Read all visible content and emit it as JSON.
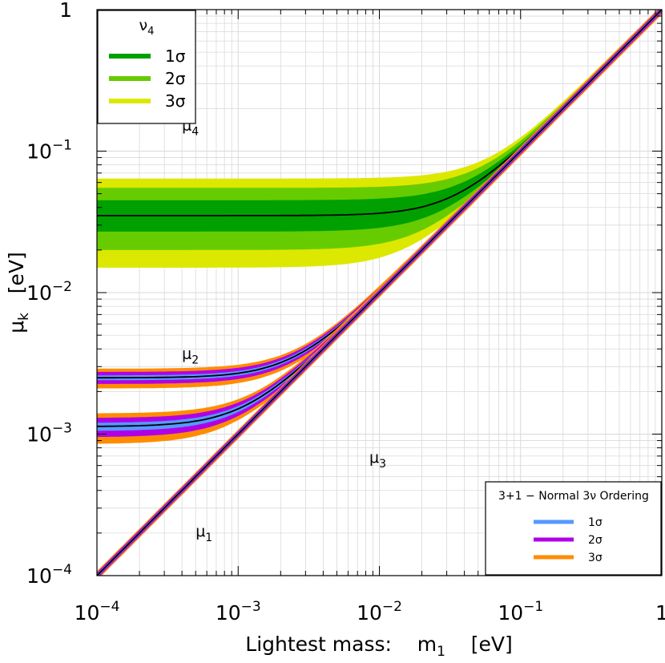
{
  "chart_data": {
    "type": "line",
    "xlabel": {
      "main": "Lightest mass:",
      "var": "m",
      "sub": "1",
      "unit": "[eV]"
    },
    "ylabel": {
      "var": "μ",
      "sub": "k",
      "unit": "[eV]"
    },
    "x_scale": "log",
    "y_scale": "log",
    "xlim": [
      0.0001,
      1
    ],
    "ylim": [
      0.0001,
      1
    ],
    "grid": true,
    "x_ticks": [
      {
        "value": 0.0001,
        "base": "10",
        "exp": "−4"
      },
      {
        "value": 0.001,
        "base": "10",
        "exp": "−3"
      },
      {
        "value": 0.01,
        "base": "10",
        "exp": "−2"
      },
      {
        "value": 0.1,
        "base": "10",
        "exp": "−1"
      },
      {
        "value": 1,
        "base": "1",
        "exp": ""
      }
    ],
    "y_ticks": [
      {
        "value": 0.0001,
        "base": "10",
        "exp": "−4"
      },
      {
        "value": 0.001,
        "base": "10",
        "exp": "−3"
      },
      {
        "value": 0.01,
        "base": "10",
        "exp": "−2"
      },
      {
        "value": 0.1,
        "base": "10",
        "exp": "−1"
      },
      {
        "value": 1,
        "base": "1",
        "exp": ""
      }
    ],
    "series": [
      {
        "name": "μ4",
        "label_sym": "μ",
        "label_sub": "4",
        "label_at": [
          0.0004,
          0.14
        ],
        "band_colors": [
          "#dde800",
          "#66cc00",
          "#00a000"
        ],
        "central_mass_eV": 0.035,
        "bands_low_eV": [
          0.015,
          0.02,
          0.027
        ],
        "bands_high_eV": [
          0.064,
          0.055,
          0.045
        ]
      },
      {
        "name": "μ2",
        "label_sym": "μ",
        "label_sub": "2",
        "label_at": [
          0.0004,
          0.0034
        ],
        "band_colors": [
          "#ff8c00",
          "#b000e8",
          "#5599ff"
        ],
        "central_mass_eV": 0.0025,
        "bands_low_eV": [
          0.0021,
          0.00226,
          0.0024
        ],
        "bands_high_eV": [
          0.0029,
          0.00275,
          0.0026
        ]
      },
      {
        "name": "μ3",
        "label_sym": "μ",
        "label_sub": "3",
        "label_at": [
          0.0085,
          0.00063
        ],
        "band_colors": [
          "#ff8c00",
          "#b000e8",
          "#5599ff"
        ],
        "central_mass_eV": 0.00113,
        "bands_low_eV": [
          0.00085,
          0.00095,
          0.00105
        ],
        "bands_high_eV": [
          0.0014,
          0.0013,
          0.0012
        ]
      },
      {
        "name": "μ1",
        "label_sym": "μ",
        "label_sub": "1",
        "label_at": [
          0.0005,
          0.00019
        ],
        "band_colors": [
          "#ff8c00",
          "#b000e8",
          "#5599ff"
        ],
        "central_mass_eV": 0,
        "bands_low_eV": [
          0,
          0,
          0
        ],
        "bands_high_eV": [
          0,
          0,
          0
        ]
      }
    ],
    "legends": [
      {
        "title": "ν",
        "title_sub": "4",
        "placement": "top-left",
        "entries": [
          {
            "label": "1σ",
            "color": "#00a000"
          },
          {
            "label": "2σ",
            "color": "#66cc00"
          },
          {
            "label": "3σ",
            "color": "#dde800"
          }
        ]
      },
      {
        "title": "3+1 − Normal 3ν Ordering",
        "placement": "bottom-right",
        "entries": [
          {
            "label": "1σ",
            "color": "#5599ff"
          },
          {
            "label": "2σ",
            "color": "#b000e8"
          },
          {
            "label": "3σ",
            "color": "#ff8c00"
          }
        ]
      }
    ],
    "colors": {
      "central_line": "#000000",
      "grid": "#d9d9d9"
    }
  }
}
